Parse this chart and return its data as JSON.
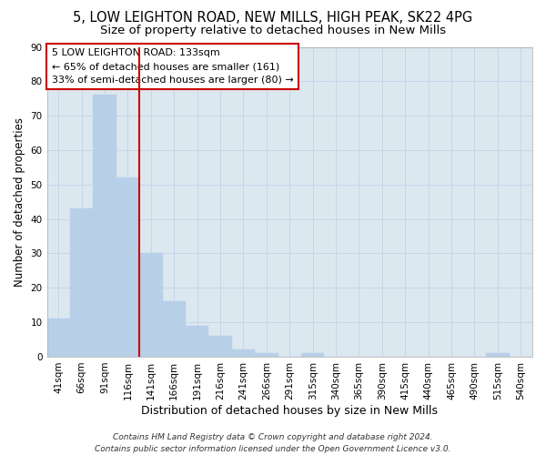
{
  "title1": "5, LOW LEIGHTON ROAD, NEW MILLS, HIGH PEAK, SK22 4PG",
  "title2": "Size of property relative to detached houses in New Mills",
  "xlabel": "Distribution of detached houses by size in New Mills",
  "ylabel": "Number of detached properties",
  "categories": [
    "41sqm",
    "66sqm",
    "91sqm",
    "116sqm",
    "141sqm",
    "166sqm",
    "191sqm",
    "216sqm",
    "241sqm",
    "266sqm",
    "291sqm",
    "315sqm",
    "340sqm",
    "365sqm",
    "390sqm",
    "415sqm",
    "440sqm",
    "465sqm",
    "490sqm",
    "515sqm",
    "540sqm"
  ],
  "values": [
    11,
    43,
    76,
    52,
    30,
    16,
    9,
    6,
    2,
    1,
    0,
    1,
    0,
    0,
    0,
    0,
    0,
    0,
    0,
    1,
    0
  ],
  "bar_color": "#b8cfe8",
  "bar_edge_color": "#b8cfe8",
  "vline_color": "#cc0000",
  "vline_x_index": 4,
  "annotation_line1": "5 LOW LEIGHTON ROAD: 133sqm",
  "annotation_line2": "← 65% of detached houses are smaller (161)",
  "annotation_line3": "33% of semi-detached houses are larger (80) →",
  "annotation_box_color": "white",
  "annotation_box_edge_color": "#cc0000",
  "ylim": [
    0,
    90
  ],
  "yticks": [
    0,
    10,
    20,
    30,
    40,
    50,
    60,
    70,
    80,
    90
  ],
  "grid_color": "#c8d4e8",
  "bg_color": "#dce8f0",
  "footer_text": "Contains HM Land Registry data © Crown copyright and database right 2024.\nContains public sector information licensed under the Open Government Licence v3.0.",
  "title1_fontsize": 10.5,
  "title2_fontsize": 9.5,
  "xlabel_fontsize": 9,
  "ylabel_fontsize": 8.5,
  "tick_fontsize": 7.5,
  "annotation_fontsize": 8,
  "footer_fontsize": 6.5
}
